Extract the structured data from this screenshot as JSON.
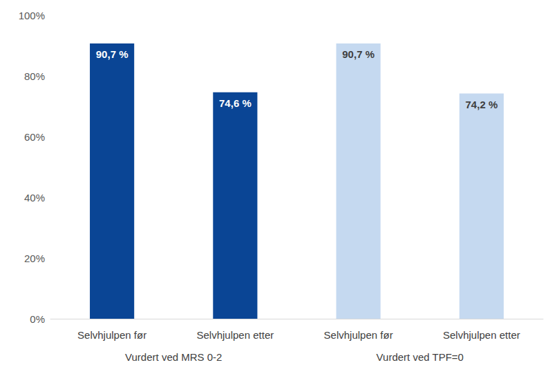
{
  "chart_data": {
    "type": "bar",
    "categories": [
      "Selvhjulpen før",
      "Selvhjulpen etter",
      "Selvhjulpen før",
      "Selvhjulpen etter"
    ],
    "group_labels": [
      "Vurdert ved MRS 0-2",
      "Vurdert ved TPF=0"
    ],
    "values": [
      90.7,
      74.6,
      90.7,
      74.2
    ],
    "value_labels": [
      "90,7 %",
      "74,6 %",
      "90,7 %",
      "74,2 %"
    ],
    "colors": [
      "#0a4595",
      "#0a4595",
      "#c5d9f0",
      "#c5d9f0"
    ],
    "data_labels": true,
    "grid": false,
    "ylim": [
      0,
      100
    ],
    "yticks": [
      {
        "value": 0,
        "label": "0%"
      },
      {
        "value": 20,
        "label": "20%"
      },
      {
        "value": 40,
        "label": "40%"
      },
      {
        "value": 60,
        "label": "60%"
      },
      {
        "value": 80,
        "label": "80%"
      },
      {
        "value": 100,
        "label": "100%"
      }
    ]
  }
}
